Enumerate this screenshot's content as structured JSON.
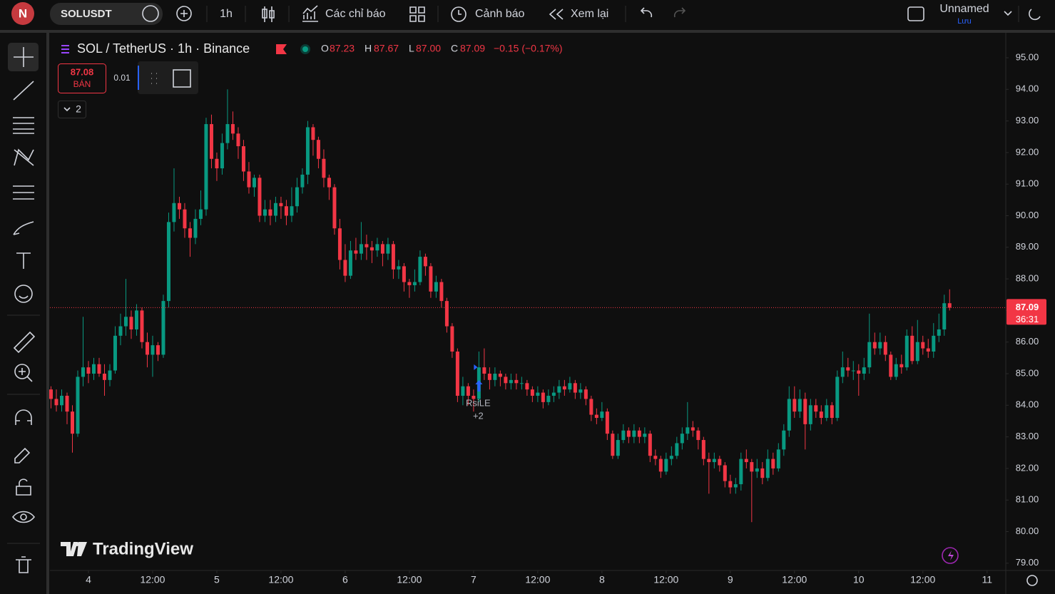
{
  "toolbar": {
    "avatar": "N",
    "symbol": "SOLUSDT",
    "interval": "1h",
    "indicators": "Các chỉ báo",
    "alerts": "Cảnh báo",
    "replay": "Xem lại",
    "layout_name": "Unnamed",
    "save": "Lưu"
  },
  "trade": {
    "sell_price": "87.08",
    "sell": "BÁN",
    "quantity": "0.01"
  },
  "indicators_toggle": "2",
  "watermark": "TradingView",
  "chart_data": {
    "type": "candlestick",
    "legend": {
      "name": "SOL / TetherUS · 1h · Binance",
      "open_key": "O",
      "open": "87.23",
      "high_key": "H",
      "high": "87.67",
      "low_key": "L",
      "low": "87.00",
      "close_key": "C",
      "close": "87.09",
      "change": "−0.15 (−0.17%)"
    },
    "up_color": "#089981",
    "down_color": "#f23645",
    "grid": false,
    "xlim": [
      -0.2,
      178.5
    ],
    "xticks": [
      {
        "value": 7,
        "label": "4"
      },
      {
        "value": 19,
        "label": "12:00"
      },
      {
        "value": 31,
        "label": "5"
      },
      {
        "value": 43,
        "label": "12:00"
      },
      {
        "value": 55,
        "label": "6"
      },
      {
        "value": 67,
        "label": "12:00"
      },
      {
        "value": 79,
        "label": "7"
      },
      {
        "value": 91,
        "label": "12:00"
      },
      {
        "value": 103,
        "label": "8"
      },
      {
        "value": 115,
        "label": "12:00"
      },
      {
        "value": 127,
        "label": "9"
      },
      {
        "value": 139,
        "label": "12:00"
      },
      {
        "value": 151,
        "label": "10"
      },
      {
        "value": 163,
        "label": "12:00"
      },
      {
        "value": 175,
        "label": "11"
      }
    ],
    "ylim": [
      78.77,
      95.79
    ],
    "yticks": [
      {
        "value": 79,
        "label": "79.00"
      },
      {
        "value": 80,
        "label": "80.00"
      },
      {
        "value": 81,
        "label": "81.00"
      },
      {
        "value": 82,
        "label": "82.00"
      },
      {
        "value": 83,
        "label": "83.00"
      },
      {
        "value": 84,
        "label": "84.00"
      },
      {
        "value": 85,
        "label": "85.00"
      },
      {
        "value": 86,
        "label": "86.00"
      },
      {
        "value": 87,
        "label": "87.00"
      },
      {
        "value": 88,
        "label": "88.00"
      },
      {
        "value": 89,
        "label": "89.00"
      },
      {
        "value": 90,
        "label": "90.00"
      },
      {
        "value": 91,
        "label": "91.00"
      },
      {
        "value": 92,
        "label": "92.00"
      },
      {
        "value": 93,
        "label": "93.00"
      },
      {
        "value": 94,
        "label": "94.00"
      },
      {
        "value": 95,
        "label": "95.00"
      }
    ],
    "last_price": 87.09,
    "countdown": "36:31",
    "annotation": {
      "label": "RsiLE",
      "count": "+2"
    },
    "ohlc": [
      [
        84.5,
        84.6,
        83.9,
        84.2
      ],
      [
        84.2,
        84.5,
        83.8,
        84.0
      ],
      [
        84.0,
        84.5,
        83.8,
        84.3
      ],
      [
        84.3,
        84.4,
        83.4,
        83.8
      ],
      [
        83.8,
        84.0,
        82.5,
        83.1
      ],
      [
        83.1,
        85.1,
        83.0,
        84.9
      ],
      [
        84.9,
        86.8,
        84.6,
        85.2
      ],
      [
        85.2,
        85.4,
        84.7,
        85.0
      ],
      [
        85.0,
        85.5,
        84.8,
        85.3
      ],
      [
        85.3,
        85.5,
        84.9,
        85.0
      ],
      [
        85.0,
        85.3,
        84.3,
        84.8
      ],
      [
        84.8,
        85.3,
        84.6,
        85.1
      ],
      [
        85.1,
        86.5,
        85.0,
        86.2
      ],
      [
        86.2,
        86.9,
        85.9,
        86.5
      ],
      [
        86.5,
        88.0,
        86.2,
        86.8
      ],
      [
        86.8,
        87.0,
        86.1,
        86.4
      ],
      [
        86.4,
        87.2,
        86.2,
        87.0
      ],
      [
        87.0,
        87.1,
        85.8,
        86.0
      ],
      [
        86.0,
        86.3,
        85.2,
        85.6
      ],
      [
        85.6,
        86.2,
        84.9,
        85.9
      ],
      [
        85.9,
        86.0,
        85.4,
        85.6
      ],
      [
        85.6,
        87.5,
        85.5,
        87.3
      ],
      [
        87.3,
        90.1,
        87.1,
        89.8
      ],
      [
        89.8,
        91.5,
        89.5,
        90.4
      ],
      [
        90.4,
        90.6,
        89.9,
        90.2
      ],
      [
        90.2,
        90.4,
        89.3,
        89.6
      ],
      [
        89.6,
        89.8,
        88.7,
        89.3
      ],
      [
        89.3,
        90.2,
        89.1,
        89.9
      ],
      [
        89.9,
        90.8,
        89.7,
        90.2
      ],
      [
        90.2,
        93.1,
        90.0,
        92.9
      ],
      [
        92.9,
        93.2,
        91.5,
        91.8
      ],
      [
        91.8,
        92.0,
        91.1,
        91.5
      ],
      [
        91.5,
        92.6,
        91.3,
        92.3
      ],
      [
        92.3,
        94.0,
        92.1,
        92.9
      ],
      [
        92.9,
        93.3,
        92.4,
        92.6
      ],
      [
        92.6,
        92.8,
        91.8,
        92.2
      ],
      [
        92.2,
        92.4,
        91.1,
        91.4
      ],
      [
        91.4,
        91.7,
        90.7,
        90.9
      ],
      [
        90.9,
        91.3,
        90.6,
        91.2
      ],
      [
        91.2,
        91.3,
        89.8,
        90.0
      ],
      [
        90.0,
        90.5,
        89.8,
        90.2
      ],
      [
        90.2,
        90.5,
        89.7,
        90.0
      ],
      [
        90.0,
        90.6,
        89.8,
        90.4
      ],
      [
        90.4,
        90.6,
        89.9,
        90.3
      ],
      [
        90.3,
        90.5,
        89.7,
        90.0
      ],
      [
        90.0,
        90.9,
        89.8,
        90.3
      ],
      [
        90.3,
        91.2,
        90.1,
        90.9
      ],
      [
        90.9,
        91.5,
        90.7,
        91.3
      ],
      [
        91.3,
        93.0,
        91.0,
        92.8
      ],
      [
        92.8,
        92.9,
        91.9,
        92.4
      ],
      [
        92.4,
        92.5,
        91.5,
        91.8
      ],
      [
        91.8,
        92.1,
        90.9,
        91.2
      ],
      [
        91.2,
        91.3,
        90.5,
        90.9
      ],
      [
        90.9,
        91.0,
        89.4,
        89.6
      ],
      [
        89.6,
        89.9,
        88.3,
        88.6
      ],
      [
        88.6,
        89.1,
        87.9,
        88.1
      ],
      [
        88.1,
        89.2,
        88.0,
        88.9
      ],
      [
        88.9,
        89.3,
        88.6,
        88.8
      ],
      [
        88.8,
        89.8,
        88.6,
        89.1
      ],
      [
        89.1,
        89.4,
        88.6,
        89.0
      ],
      [
        89.0,
        89.2,
        88.5,
        88.9
      ],
      [
        88.9,
        89.3,
        88.7,
        89.1
      ],
      [
        89.1,
        89.2,
        88.4,
        88.8
      ],
      [
        88.8,
        89.3,
        88.6,
        89.1
      ],
      [
        89.1,
        89.2,
        88.0,
        88.3
      ],
      [
        88.3,
        88.6,
        88.0,
        88.4
      ],
      [
        88.4,
        88.5,
        87.6,
        87.9
      ],
      [
        87.9,
        88.0,
        87.4,
        87.8
      ],
      [
        87.8,
        88.3,
        87.6,
        87.9
      ],
      [
        87.9,
        88.9,
        87.8,
        88.7
      ],
      [
        88.7,
        88.8,
        88.1,
        88.4
      ],
      [
        88.4,
        88.5,
        87.4,
        87.6
      ],
      [
        87.6,
        88.1,
        87.4,
        87.9
      ],
      [
        87.9,
        88.0,
        87.1,
        87.3
      ],
      [
        87.3,
        87.4,
        86.3,
        86.5
      ],
      [
        86.5,
        86.6,
        85.5,
        85.7
      ],
      [
        85.7,
        85.8,
        84.1,
        84.3
      ],
      [
        84.3,
        84.9,
        84.0,
        84.6
      ],
      [
        84.6,
        84.7,
        84.0,
        84.3
      ],
      [
        84.3,
        84.5,
        83.8,
        84.2
      ],
      [
        84.2,
        85.7,
        84.1,
        85.2
      ],
      [
        85.2,
        85.8,
        84.8,
        85.0
      ],
      [
        85.0,
        85.2,
        84.5,
        84.8
      ],
      [
        84.8,
        85.2,
        84.6,
        85.0
      ],
      [
        85.0,
        85.1,
        84.6,
        84.9
      ],
      [
        84.9,
        85.0,
        84.5,
        84.7
      ],
      [
        84.7,
        85.0,
        84.5,
        84.8
      ],
      [
        84.8,
        85.0,
        84.5,
        84.7
      ],
      [
        84.7,
        84.9,
        84.5,
        84.7
      ],
      [
        84.7,
        84.8,
        84.3,
        84.5
      ],
      [
        84.5,
        84.6,
        84.1,
        84.3
      ],
      [
        84.3,
        84.6,
        84.1,
        84.4
      ],
      [
        84.4,
        84.5,
        83.9,
        84.1
      ],
      [
        84.1,
        84.5,
        84.0,
        84.3
      ],
      [
        84.3,
        84.6,
        84.1,
        84.4
      ],
      [
        84.4,
        84.8,
        84.2,
        84.6
      ],
      [
        84.6,
        84.8,
        84.3,
        84.5
      ],
      [
        84.5,
        84.9,
        84.4,
        84.7
      ],
      [
        84.7,
        84.8,
        84.2,
        84.4
      ],
      [
        84.4,
        84.7,
        84.2,
        84.5
      ],
      [
        84.5,
        84.6,
        84.0,
        84.2
      ],
      [
        84.2,
        84.3,
        83.5,
        83.7
      ],
      [
        83.7,
        83.9,
        83.4,
        83.6
      ],
      [
        83.6,
        84.1,
        83.5,
        83.8
      ],
      [
        83.8,
        83.9,
        82.9,
        83.1
      ],
      [
        83.1,
        83.2,
        82.3,
        82.4
      ],
      [
        82.4,
        83.1,
        82.3,
        82.9
      ],
      [
        82.9,
        83.4,
        82.8,
        83.2
      ],
      [
        83.2,
        83.3,
        82.8,
        83.0
      ],
      [
        83.0,
        83.4,
        82.8,
        83.2
      ],
      [
        83.2,
        83.3,
        82.8,
        83.0
      ],
      [
        83.0,
        83.3,
        82.8,
        83.1
      ],
      [
        83.1,
        83.2,
        82.2,
        82.4
      ],
      [
        82.4,
        82.6,
        82.1,
        82.3
      ],
      [
        82.3,
        82.4,
        81.7,
        81.9
      ],
      [
        81.9,
        82.5,
        81.8,
        82.3
      ],
      [
        82.3,
        82.7,
        82.1,
        82.4
      ],
      [
        82.4,
        83.0,
        82.3,
        82.8
      ],
      [
        82.8,
        83.3,
        82.6,
        83.1
      ],
      [
        83.1,
        84.1,
        82.9,
        83.3
      ],
      [
        83.3,
        83.5,
        83.0,
        83.2
      ],
      [
        83.2,
        83.3,
        82.6,
        82.9
      ],
      [
        82.9,
        83.0,
        82.1,
        82.3
      ],
      [
        82.3,
        82.5,
        81.2,
        82.2
      ],
      [
        82.2,
        82.5,
        82.0,
        82.3
      ],
      [
        82.3,
        82.4,
        81.9,
        82.1
      ],
      [
        82.1,
        82.2,
        81.4,
        81.6
      ],
      [
        81.6,
        81.8,
        81.2,
        81.4
      ],
      [
        81.4,
        81.7,
        81.2,
        81.5
      ],
      [
        81.5,
        82.5,
        81.3,
        82.3
      ],
      [
        82.3,
        82.6,
        82.0,
        82.2
      ],
      [
        82.2,
        82.3,
        80.3,
        81.9
      ],
      [
        81.9,
        82.3,
        81.7,
        82.0
      ],
      [
        82.0,
        82.2,
        81.5,
        81.7
      ],
      [
        81.7,
        82.6,
        81.6,
        82.3
      ],
      [
        82.3,
        82.5,
        81.8,
        82.0
      ],
      [
        82.0,
        82.8,
        81.9,
        82.6
      ],
      [
        82.6,
        83.4,
        82.4,
        83.2
      ],
      [
        83.2,
        84.6,
        83.0,
        84.2
      ],
      [
        84.2,
        84.6,
        83.6,
        83.8
      ],
      [
        83.8,
        84.5,
        83.6,
        84.2
      ],
      [
        84.2,
        84.4,
        82.6,
        83.4
      ],
      [
        83.4,
        84.2,
        83.2,
        84.0
      ],
      [
        84.0,
        84.2,
        83.6,
        83.8
      ],
      [
        83.8,
        84.0,
        83.4,
        83.6
      ],
      [
        83.6,
        84.2,
        83.5,
        84.0
      ],
      [
        84.0,
        84.1,
        83.4,
        83.6
      ],
      [
        83.6,
        85.1,
        83.5,
        84.9
      ],
      [
        84.9,
        85.7,
        84.7,
        85.2
      ],
      [
        85.2,
        85.5,
        84.9,
        85.1
      ],
      [
        85.1,
        85.4,
        84.8,
        85.1
      ],
      [
        85.1,
        85.3,
        84.3,
        85.0
      ],
      [
        85.0,
        85.5,
        84.8,
        85.2
      ],
      [
        85.2,
        86.9,
        85.0,
        86.0
      ],
      [
        86.0,
        86.3,
        85.6,
        85.8
      ],
      [
        85.8,
        86.3,
        85.6,
        86.0
      ],
      [
        86.0,
        86.2,
        85.4,
        85.6
      ],
      [
        85.6,
        85.7,
        84.8,
        84.9
      ],
      [
        84.9,
        85.5,
        84.8,
        85.3
      ],
      [
        85.3,
        85.6,
        85.0,
        85.2
      ],
      [
        85.2,
        86.4,
        85.1,
        86.2
      ],
      [
        86.2,
        86.5,
        85.3,
        85.4
      ],
      [
        85.4,
        86.7,
        85.3,
        86.0
      ],
      [
        86.0,
        86.2,
        85.6,
        85.8
      ],
      [
        85.8,
        86.1,
        85.5,
        85.7
      ],
      [
        85.7,
        86.6,
        85.5,
        86.2
      ],
      [
        86.2,
        86.9,
        86.0,
        86.4
      ],
      [
        86.4,
        87.5,
        86.2,
        87.23
      ],
      [
        87.23,
        87.67,
        87.0,
        87.09
      ]
    ]
  }
}
